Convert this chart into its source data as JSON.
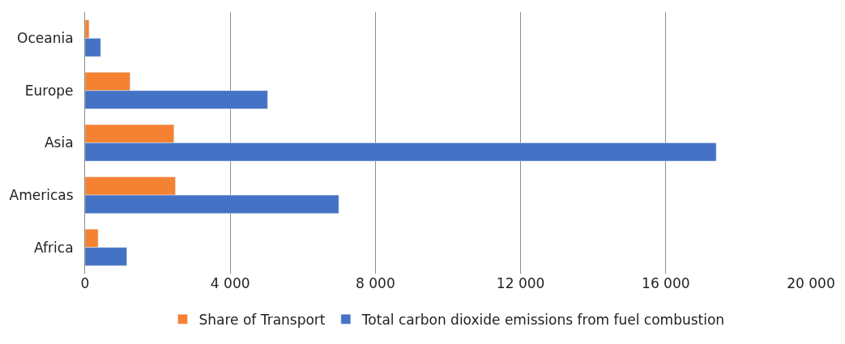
{
  "chart_data": {
    "type": "bar",
    "orientation": "horizontal",
    "categories": [
      "Oceania",
      "Europe",
      "Asia",
      "Americas",
      "Africa"
    ],
    "series": [
      {
        "name": "Share of Transport",
        "color": "#f58232",
        "values": [
          110,
          1240,
          2450,
          2490,
          360
        ]
      },
      {
        "name": "Total carbon dioxide emissions from fuel combustion",
        "color": "#4472c4",
        "values": [
          430,
          5030,
          17390,
          6990,
          1150
        ]
      }
    ],
    "xlim": [
      0,
      20000
    ],
    "xticks": [
      0,
      {
        "value": 4000,
        "label": "4 000"
      },
      {
        "value": 8000,
        "label": "8 000"
      },
      {
        "value": 12000,
        "label": "12 000"
      },
      {
        "value": 16000,
        "label": "16 000"
      },
      {
        "value": 20000,
        "label": "20 000"
      }
    ],
    "grid": "x",
    "legend": "bottom"
  }
}
